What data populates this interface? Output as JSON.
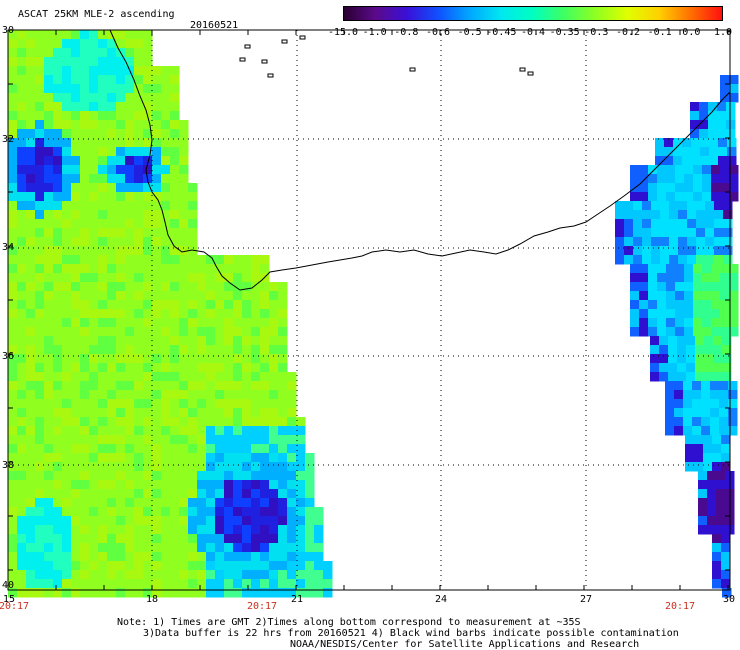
{
  "title": "ASCAT 25KM MLE-2 ascending",
  "date": "20160521",
  "colorbar": {
    "labels": [
      "-15.0",
      "-1.0",
      "-0.8",
      "-0.6",
      "-0.5",
      "-0.45",
      "-0.4",
      "-0.35",
      "-0.3",
      "-0.2",
      "-0.1",
      "0.0",
      "1.0"
    ],
    "colors": [
      "#2a0030",
      "#5b0a8a",
      "#3a10d8",
      "#1050ff",
      "#00a8ff",
      "#00e8f0",
      "#00ffc0",
      "#40ff60",
      "#90ff20",
      "#e0ff00",
      "#ffd000",
      "#ff7000",
      "#ff1010"
    ]
  },
  "axes": {
    "y_labels": [
      "30",
      "32",
      "34",
      "36",
      "38",
      "40"
    ],
    "x_labels": [
      "15",
      "18",
      "21",
      "24",
      "27",
      "30"
    ]
  },
  "time_labels": [
    "20:17",
    "20:17",
    "20:17"
  ],
  "notes": [
    "Note: 1) Times are GMT 2)Times along bottom correspond to measurement at ~35S",
    "3)Data buffer is 22 hrs from 20160521 4) Black wind barbs indicate possible contamination",
    "NOAA/NESDIS/Center for Satellite Applications and Research"
  ],
  "palette": {
    "west": [
      "#90ff20",
      "#a8f810",
      "#60ff40",
      "#40ff80",
      "#20ffc0",
      "#00f0f0",
      "#00b0ff"
    ],
    "dark": [
      "#1040ff",
      "#2020e0",
      "#3010c0"
    ],
    "east": [
      "#00e0ff",
      "#00c8ff",
      "#30ff90",
      "#50ff50",
      "#1060ff",
      "#3010d0",
      "#4a0a90"
    ]
  }
}
